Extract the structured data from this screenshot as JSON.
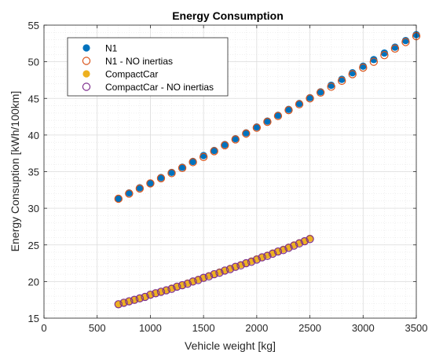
{
  "chart_data": {
    "type": "scatter",
    "title": "Energy Consumption",
    "xlabel": "Vehicle weight [kg]",
    "ylabel": "Energy Consuption [kWh/100km]",
    "xlim": [
      0,
      3500
    ],
    "ylim": [
      15,
      55
    ],
    "xticks": [
      0,
      500,
      1000,
      1500,
      2000,
      2500,
      3000,
      3500
    ],
    "yticks": [
      15,
      20,
      25,
      30,
      35,
      40,
      45,
      50,
      55
    ],
    "grid": true,
    "minor_grid": true,
    "legend_position": "top-left",
    "series": [
      {
        "name": "N1",
        "marker": "filled-circle",
        "color": "#0072BD",
        "x": [
          700,
          800,
          900,
          1000,
          1100,
          1200,
          1300,
          1400,
          1500,
          1600,
          1700,
          1800,
          1900,
          2000,
          2100,
          2200,
          2300,
          2400,
          2500,
          2600,
          2700,
          2800,
          2900,
          3000,
          3100,
          3200,
          3300,
          3400,
          3500
        ],
        "y": [
          31.3,
          32.1,
          32.8,
          33.4,
          34.2,
          34.9,
          35.6,
          36.4,
          37.2,
          37.9,
          38.7,
          39.5,
          40.3,
          41.1,
          41.9,
          42.7,
          43.5,
          44.3,
          45.1,
          45.9,
          46.8,
          47.6,
          48.5,
          49.4,
          50.3,
          51.2,
          52.0,
          52.9,
          53.7
        ]
      },
      {
        "name": "N1 - NO inertias",
        "marker": "open-circle",
        "color": "#D95319",
        "x": [
          700,
          800,
          900,
          1000,
          1100,
          1200,
          1300,
          1400,
          1500,
          1600,
          1700,
          1800,
          1900,
          2000,
          2100,
          2200,
          2300,
          2400,
          2500,
          2600,
          2700,
          2800,
          2900,
          3000,
          3100,
          3200,
          3300,
          3400,
          3500
        ],
        "y": [
          31.3,
          32.0,
          32.7,
          33.4,
          34.1,
          34.8,
          35.5,
          36.3,
          37.0,
          37.8,
          38.6,
          39.4,
          40.2,
          41.0,
          41.8,
          42.6,
          43.4,
          44.2,
          45.0,
          45.8,
          46.6,
          47.4,
          48.3,
          49.2,
          50.0,
          50.9,
          51.8,
          52.7,
          53.5
        ]
      },
      {
        "name": "CompactCar",
        "marker": "filled-circle",
        "color": "#EDB120",
        "x": [
          700,
          750,
          800,
          850,
          900,
          950,
          1000,
          1050,
          1100,
          1150,
          1200,
          1250,
          1300,
          1350,
          1400,
          1450,
          1500,
          1550,
          1600,
          1650,
          1700,
          1750,
          1800,
          1850,
          1900,
          1950,
          2000,
          2050,
          2100,
          2150,
          2200,
          2250,
          2300,
          2350,
          2400,
          2450,
          2500
        ],
        "y": [
          16.9,
          17.1,
          17.3,
          17.5,
          17.7,
          17.9,
          18.2,
          18.4,
          18.6,
          18.8,
          19.1,
          19.3,
          19.5,
          19.8,
          20.0,
          20.3,
          20.5,
          20.8,
          21.0,
          21.3,
          21.5,
          21.8,
          22.0,
          22.3,
          22.5,
          22.8,
          23.1,
          23.3,
          23.6,
          23.9,
          24.1,
          24.4,
          24.7,
          25.0,
          25.3,
          25.5,
          25.9
        ]
      },
      {
        "name": "CompactCar - NO inertias",
        "marker": "open-circle",
        "color": "#7E2F8E",
        "x": [
          700,
          750,
          800,
          850,
          900,
          950,
          1000,
          1050,
          1100,
          1150,
          1200,
          1250,
          1300,
          1350,
          1400,
          1450,
          1500,
          1550,
          1600,
          1650,
          1700,
          1750,
          1800,
          1850,
          1900,
          1950,
          2000,
          2050,
          2100,
          2150,
          2200,
          2250,
          2300,
          2350,
          2400,
          2450,
          2500
        ],
        "y": [
          16.9,
          17.1,
          17.3,
          17.5,
          17.7,
          17.9,
          18.2,
          18.4,
          18.6,
          18.8,
          19.0,
          19.3,
          19.5,
          19.7,
          20.0,
          20.2,
          20.5,
          20.7,
          21.0,
          21.2,
          21.5,
          21.7,
          22.0,
          22.2,
          22.5,
          22.7,
          23.0,
          23.3,
          23.5,
          23.8,
          24.1,
          24.3,
          24.6,
          24.9,
          25.2,
          25.5,
          25.8
        ]
      }
    ]
  }
}
